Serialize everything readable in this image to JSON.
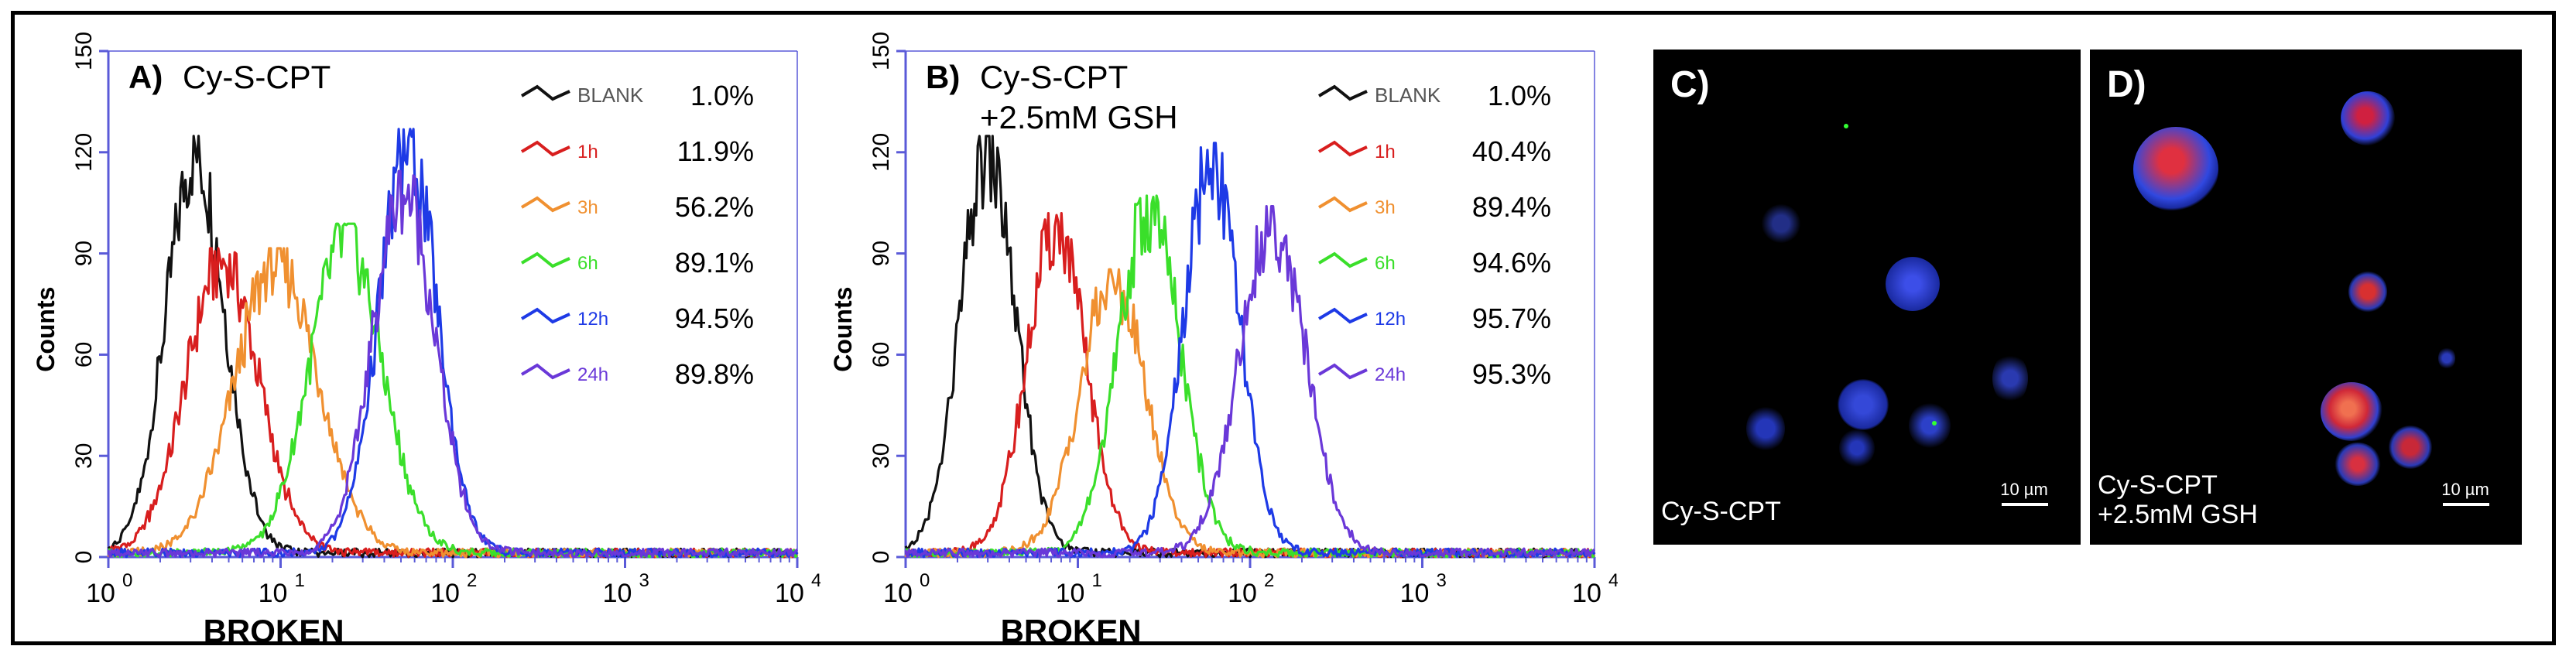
{
  "colors": {
    "blank": "#111111",
    "h1": "#d81e1e",
    "h3": "#f09030",
    "h6": "#3adf2a",
    "h12": "#1e3ae6",
    "h24": "#6a38d8",
    "axis": "#5a5ad8",
    "legend_blank_label": "#555555"
  },
  "chart_data": [
    {
      "type": "line",
      "panel": "A)",
      "title": "Cy-S-CPT",
      "title_line2": "",
      "xlabel": "BROKEN",
      "ylabel": "Counts",
      "xscale": "log",
      "xlim": [
        1,
        10000
      ],
      "ylim": [
        0,
        150
      ],
      "x_ticks": [
        {
          "b": "10",
          "e": "0"
        },
        {
          "b": "10",
          "e": "1"
        },
        {
          "b": "10",
          "e": "2"
        },
        {
          "b": "10",
          "e": "3"
        },
        {
          "b": "10",
          "e": "4"
        }
      ],
      "y_ticks": [
        "0",
        "30",
        "60",
        "90",
        "120",
        "150"
      ],
      "y_tick_values": [
        0,
        30,
        60,
        90,
        120,
        150
      ],
      "series": [
        {
          "name": "BLANK",
          "percent": "1.0%",
          "color_key": "blank",
          "peak_x": 3.2,
          "peak_y": 120,
          "width": 0.17
        },
        {
          "name": "1h",
          "percent": "11.9%",
          "color_key": "h1",
          "peak_x": 4.6,
          "peak_y": 88,
          "width": 0.21
        },
        {
          "name": "3h",
          "percent": "56.2%",
          "color_key": "h3",
          "peak_x": 9.5,
          "peak_y": 88,
          "width": 0.24
        },
        {
          "name": "6h",
          "percent": "89.1%",
          "color_key": "h6",
          "peak_x": 24,
          "peak_y": 95,
          "width": 0.21
        },
        {
          "name": "12h",
          "percent": "94.5%",
          "color_key": "h12",
          "peak_x": 55,
          "peak_y": 122,
          "width": 0.17
        },
        {
          "name": "24h",
          "percent": "89.8%",
          "color_key": "h24",
          "peak_x": 52,
          "peak_y": 110,
          "width": 0.18
        }
      ]
    },
    {
      "type": "line",
      "panel": "B)",
      "title": "Cy-S-CPT",
      "title_line2": "+2.5mM GSH",
      "xlabel": "BROKEN",
      "ylabel": "Counts",
      "xscale": "log",
      "xlim": [
        1,
        10000
      ],
      "ylim": [
        0,
        150
      ],
      "x_ticks": [
        {
          "b": "10",
          "e": "0"
        },
        {
          "b": "10",
          "e": "1"
        },
        {
          "b": "10",
          "e": "2"
        },
        {
          "b": "10",
          "e": "3"
        },
        {
          "b": "10",
          "e": "4"
        }
      ],
      "y_ticks": [
        "0",
        "30",
        "60",
        "90",
        "120",
        "150"
      ],
      "y_tick_values": [
        0,
        30,
        60,
        90,
        120,
        150
      ],
      "series": [
        {
          "name": "BLANK",
          "percent": "1.0%",
          "color_key": "blank",
          "peak_x": 3.0,
          "peak_y": 120,
          "width": 0.16
        },
        {
          "name": "1h",
          "percent": "40.4%",
          "color_key": "h1",
          "peak_x": 7.5,
          "peak_y": 98,
          "width": 0.17
        },
        {
          "name": "3h",
          "percent": "89.4%",
          "color_key": "h3",
          "peak_x": 16,
          "peak_y": 82,
          "width": 0.19
        },
        {
          "name": "6h",
          "percent": "94.6%",
          "color_key": "h6",
          "peak_x": 26,
          "peak_y": 103,
          "width": 0.18
        },
        {
          "name": "12h",
          "percent": "95.7%",
          "color_key": "h12",
          "peak_x": 60,
          "peak_y": 118,
          "width": 0.16
        },
        {
          "name": "24h",
          "percent": "95.3%",
          "color_key": "h24",
          "peak_x": 135,
          "peak_y": 100,
          "width": 0.19
        }
      ]
    }
  ],
  "micrographs": [
    {
      "panel": "C)",
      "caption_line1": "Cy-S-CPT",
      "caption_line2": "",
      "scalebar": "10 µm"
    },
    {
      "panel": "D)",
      "caption_line1": "Cy-S-CPT",
      "caption_line2": "+2.5mM GSH",
      "scalebar": "10 µm"
    }
  ]
}
